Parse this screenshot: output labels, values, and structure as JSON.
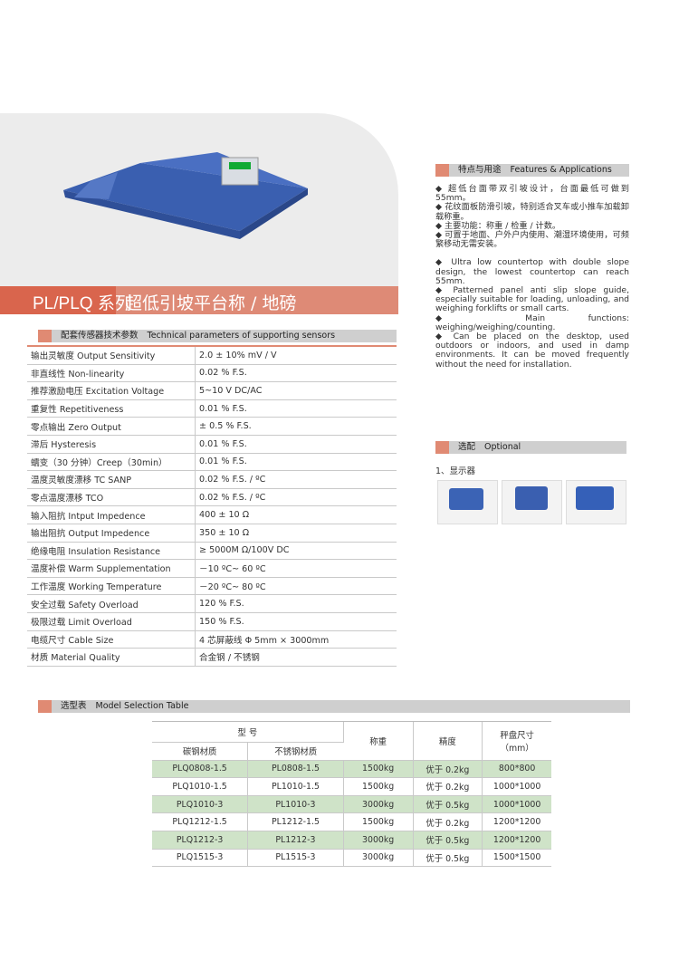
{
  "header": {
    "series": "PL/PLQ 系列",
    "title": "超低引坡平台称 / 地磅"
  },
  "colors": {
    "accent": "#d9654d",
    "accent_light": "#de8a76",
    "section_gray": "#cfcfcf",
    "row_green": "#cfe3c8",
    "product_blue": "#3a5fb0"
  },
  "spec_section": {
    "cn": "配套传感器技术参数",
    "en": "Technical parameters of supporting sensors",
    "rows": [
      {
        "label": "输出灵敏度 Output Sensitivity",
        "value": "2.0 ± 10% mV / V"
      },
      {
        "label": "非直线性 Non-linearity",
        "value": "0.02 % F.S."
      },
      {
        "label": "推荐激励电压 Excitation Voltage",
        "value": "5~10 V  DC/AC"
      },
      {
        "label": "重复性 Repetitiveness",
        "value": "0.01 % F.S."
      },
      {
        "label": "零点输出 Zero Output",
        "value": " ± 0.5 % F.S."
      },
      {
        "label": "滞后 Hysteresis",
        "value": "0.01 % F.S."
      },
      {
        "label": "蠕变（30 分钟）Creep（30min）",
        "value": "0.01 % F.S."
      },
      {
        "label": "温度灵敏度漂移 TC SANP",
        "value": "0.02 %  F.S. / ºC"
      },
      {
        "label": "零点温度漂移 TCO",
        "value": "0.02 %  F.S. / ºC"
      },
      {
        "label": "输入阻抗 Intput Impedence",
        "value": "400 ± 10 Ω"
      },
      {
        "label": "输出阻抗 Output Impedence",
        "value": "350 ± 10 Ω"
      },
      {
        "label": "绝缘电阻 Insulation Resistance",
        "value": "≥ 5000M Ω/100V DC"
      },
      {
        "label": "温度补偿 Warm Supplementation",
        "value": "－10 ºC~ 60 ºC"
      },
      {
        "label": "工作温度 Working Temperature",
        "value": "－20 ºC~ 80 ºC"
      },
      {
        "label": "安全过载 Safety Overload",
        "value": "120 % F.S."
      },
      {
        "label": "极限过载 Limit Overload",
        "value": "150 % F.S."
      },
      {
        "label": "电缆尺寸 Cable Size",
        "value": "4 芯屏蔽线 Φ 5mm × 3000mm"
      },
      {
        "label": "材质 Material Quality",
        "value": "合金钢 / 不锈钢"
      }
    ]
  },
  "features": {
    "cn": "特点与用途",
    "en": "Features & Applications",
    "items": [
      "◆ 超低台面带双引坡设计，台面最低可做到 55mm。",
      "◆ 花纹面板防滑引坡，特别适合叉车或小推车加载卸载称重。",
      "◆ 主要功能：称重 / 检重 / 计数。",
      "◆ 可置于地面、户外户内使用、潮湿环境使用，可频繁移动无需安装。",
      "",
      "◆ Ultra low countertop with double slope design, the lowest countertop can reach 55mm.",
      "◆ Patterned panel anti slip slope guide, especially suitable for loading, unloading, and weighing forklifts or small carts.",
      "◆ Main functions: weighing/weighing/counting.",
      "◆ Can be placed on the desktop, used outdoors or indoors, and used in damp environments. It can be moved frequently without the need for installation."
    ]
  },
  "optional": {
    "cn": "选配",
    "en": "Optional",
    "item": "1、显示器"
  },
  "model_section": {
    "cn": "选型表",
    "en": "Model Selection Table",
    "headers": {
      "model": "型  号",
      "carbon": "碳钢材质",
      "stainless": "不锈钢材质",
      "capacity": "称重",
      "accuracy": "精度",
      "size": "秤盘尺寸",
      "size_unit": "（mm）"
    },
    "rows": [
      [
        "PLQ0808-1.5",
        "PL0808-1.5",
        "1500kg",
        "优于 0.2kg",
        "800*800"
      ],
      [
        "PLQ1010-1.5",
        "PL1010-1.5",
        "1500kg",
        "优于 0.2kg",
        "1000*1000"
      ],
      [
        "PLQ1010-3",
        "PL1010-3",
        "3000kg",
        "优于 0.5kg",
        "1000*1000"
      ],
      [
        "PLQ1212-1.5",
        "PL1212-1.5",
        "1500kg",
        "优于 0.2kg",
        "1200*1200"
      ],
      [
        "PLQ1212-3",
        "PL1212-3",
        "3000kg",
        "优于 0.5kg",
        "1200*1200"
      ],
      [
        "PLQ1515-3",
        "PL1515-3",
        "3000kg",
        "优于 0.5kg",
        "1500*1500"
      ]
    ]
  }
}
